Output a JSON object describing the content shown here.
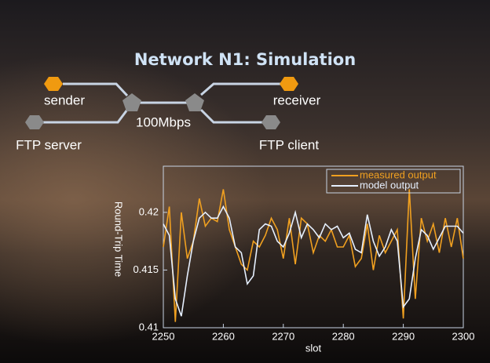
{
  "title": "Network N1: Simulation",
  "nodes": [
    {
      "label": "sender"
    },
    {
      "label": "FTP server"
    },
    {
      "label": "receiver"
    },
    {
      "label": "FTP client"
    }
  ],
  "link": {
    "label": "100Mbps"
  },
  "chart_data": {
    "type": "line",
    "x_label": "slot",
    "y_label": "Round-Trip Time",
    "x": [
      2250,
      2251,
      2252,
      2253,
      2254,
      2255,
      2256,
      2257,
      2258,
      2259,
      2260,
      2261,
      2262,
      2263,
      2264,
      2265,
      2266,
      2267,
      2268,
      2269,
      2270,
      2271,
      2272,
      2273,
      2274,
      2275,
      2276,
      2277,
      2278,
      2279,
      2280,
      2281,
      2282,
      2283,
      2284,
      2285,
      2286,
      2287,
      2288,
      2289,
      2290,
      2291,
      2292,
      2293,
      2294,
      2295,
      2296,
      2297,
      2298,
      2299,
      2300
    ],
    "series": [
      {
        "name": "measured output",
        "color": "#f0a020",
        "values": [
          0.417,
          0.4205,
          0.4105,
          0.42,
          0.416,
          0.4175,
          0.4212,
          0.4188,
          0.4195,
          0.4192,
          0.422,
          0.4185,
          0.417,
          0.4155,
          0.415,
          0.4175,
          0.417,
          0.418,
          0.4195,
          0.4185,
          0.416,
          0.4195,
          0.4155,
          0.4195,
          0.419,
          0.4165,
          0.418,
          0.4175,
          0.4185,
          0.417,
          0.417,
          0.418,
          0.4153,
          0.416,
          0.419,
          0.415,
          0.418,
          0.4165,
          0.4175,
          0.4185,
          0.4108,
          0.422,
          0.4125,
          0.4195,
          0.4175,
          0.419,
          0.4165,
          0.4195,
          0.417,
          0.4195,
          0.416
        ]
      },
      {
        "name": "model output",
        "color": "#e6f0ff",
        "values": [
          0.419,
          0.418,
          0.4125,
          0.411,
          0.4145,
          0.4175,
          0.4195,
          0.42,
          0.4195,
          0.4195,
          0.4205,
          0.4195,
          0.417,
          0.4165,
          0.4138,
          0.4145,
          0.4185,
          0.419,
          0.4188,
          0.4175,
          0.417,
          0.4182,
          0.42,
          0.4178,
          0.419,
          0.4185,
          0.4178,
          0.419,
          0.4185,
          0.4188,
          0.4178,
          0.4182,
          0.4168,
          0.4165,
          0.4198,
          0.4175,
          0.4162,
          0.417,
          0.4185,
          0.4175,
          0.4118,
          0.4125,
          0.416,
          0.4185,
          0.418,
          0.4168,
          0.4178,
          0.4188,
          0.4188,
          0.4188,
          0.4182
        ]
      }
    ],
    "xlim": [
      2250,
      2300
    ],
    "ylim": [
      0.41,
      0.424
    ],
    "xticks": [
      2250,
      2260,
      2270,
      2280,
      2290,
      2300
    ],
    "yticks": [
      0.41,
      0.415,
      0.42
    ]
  }
}
